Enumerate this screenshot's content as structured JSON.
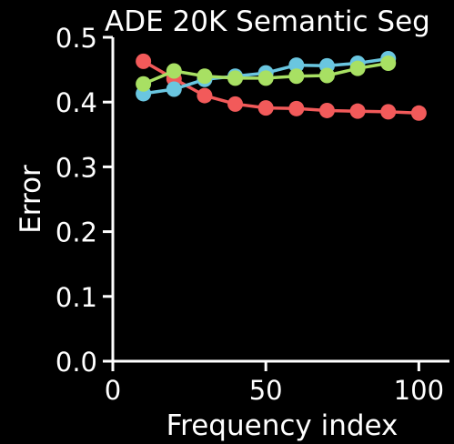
{
  "chart_data": {
    "type": "line",
    "title": "ADE 20K Semantic Seg",
    "xlabel": "Frequency index",
    "ylabel": "Error",
    "xlim": [
      0,
      110
    ],
    "ylim": [
      0.0,
      0.5
    ],
    "x_ticks": [
      0,
      50,
      100
    ],
    "x_tick_labels": [
      "0",
      "50",
      "100"
    ],
    "y_ticks": [
      0.0,
      0.1,
      0.2,
      0.3,
      0.4,
      0.5
    ],
    "y_tick_labels": [
      "0.0",
      "0.1",
      "0.2",
      "0.3",
      "0.4",
      "0.5"
    ],
    "grid": false,
    "series": [
      {
        "color": "#f25a5a",
        "x": [
          10,
          20,
          30,
          40,
          50,
          60,
          70,
          80,
          90,
          100
        ],
        "y": [
          0.463,
          0.436,
          0.41,
          0.397,
          0.391,
          0.39,
          0.387,
          0.386,
          0.385,
          0.383
        ]
      },
      {
        "color": "#6ac6e0",
        "x": [
          10,
          20,
          30,
          40,
          50,
          60,
          70,
          80,
          90
        ],
        "y": [
          0.413,
          0.42,
          0.435,
          0.44,
          0.445,
          0.457,
          0.456,
          0.46,
          0.467
        ]
      },
      {
        "color": "#a8e063",
        "x": [
          10,
          20,
          30,
          40,
          50,
          60,
          70,
          80,
          90
        ],
        "y": [
          0.428,
          0.448,
          0.44,
          0.437,
          0.437,
          0.44,
          0.441,
          0.452,
          0.46
        ]
      }
    ]
  }
}
